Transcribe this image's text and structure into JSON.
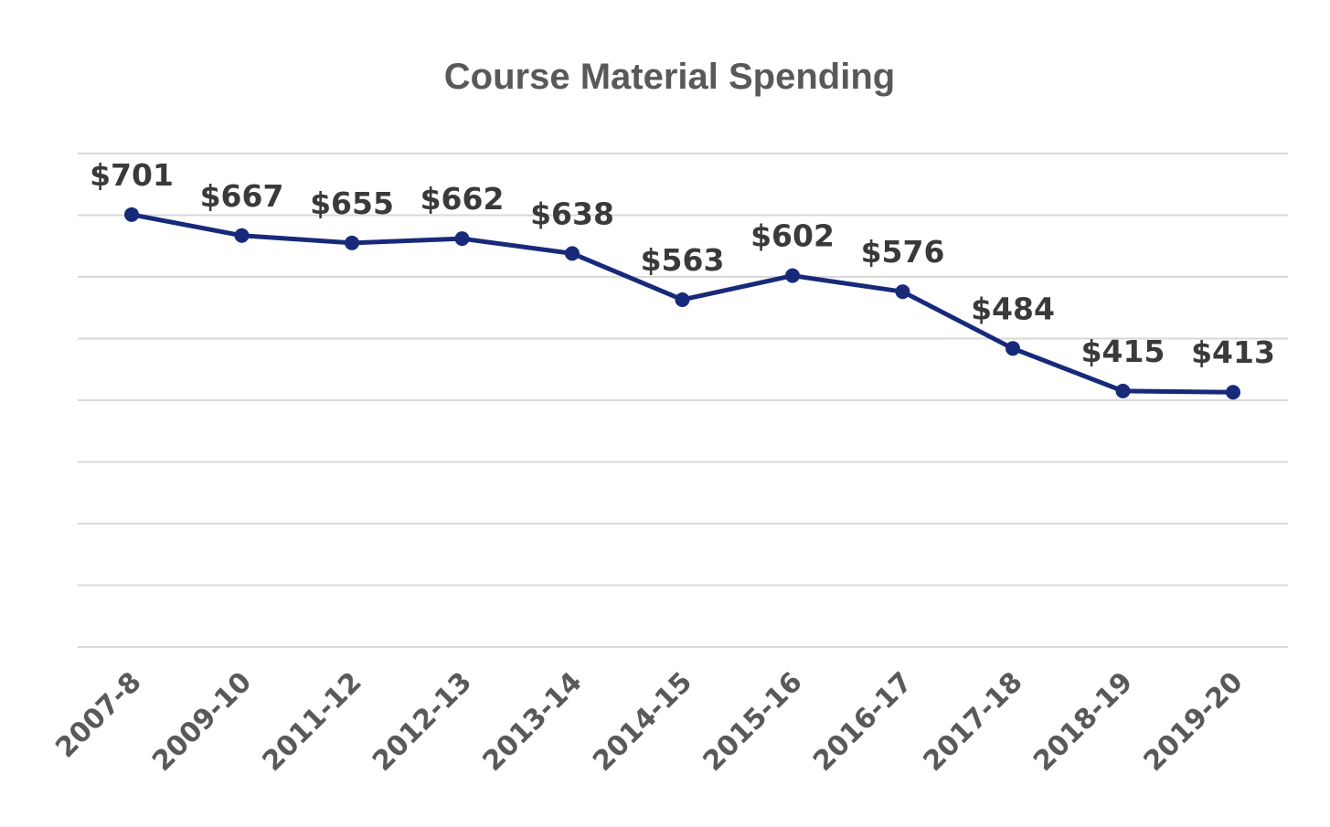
{
  "chart_data": {
    "type": "line",
    "title": "Course Material Spending",
    "xlabel": "",
    "ylabel": "",
    "categories": [
      "2007-8",
      "2009-10",
      "2011-12",
      "2012-13",
      "2013-14",
      "2014-15",
      "2015-16",
      "2016-17",
      "2017-18",
      "2018-19",
      "2019-20"
    ],
    "series": [
      {
        "values": [
          701,
          667,
          655,
          662,
          638,
          563,
          602,
          576,
          484,
          415,
          413
        ],
        "labels": [
          "$701",
          "$667",
          "$655",
          "$662",
          "$638",
          "$563",
          "$602",
          "$576",
          "$484",
          "$415",
          "$413"
        ]
      }
    ],
    "ylim": [
      0,
      800
    ],
    "y_tick_count": 9,
    "grid": true,
    "show_y_axis_labels": false,
    "line_color": "#172a7a"
  }
}
